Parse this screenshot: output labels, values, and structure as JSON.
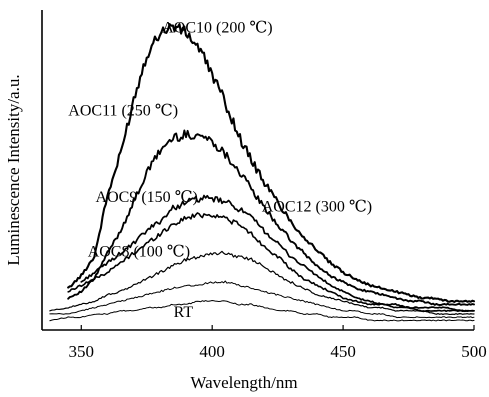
{
  "chart_data": {
    "type": "line",
    "xlabel": "Wavelength/nm",
    "ylabel": "Luminescence Intensity/a.u.",
    "xlim": [
      335,
      500
    ],
    "xticks": [
      350,
      400,
      450,
      500
    ],
    "ylim": [
      0,
      100
    ],
    "y_ticks_visible": false,
    "grid": false,
    "legend": "none",
    "series": [
      {
        "name": "AOC10 (200 ℃)",
        "x": [
          345,
          350,
          355,
          360,
          365,
          370,
          375,
          380,
          385,
          390,
          395,
          400,
          405,
          410,
          415,
          420,
          425,
          430,
          435,
          440,
          445,
          450,
          455,
          460,
          465,
          470,
          475,
          480,
          485,
          490,
          495,
          500
        ],
        "y": [
          13,
          17,
          23,
          42,
          55,
          72,
          86,
          93,
          95,
          93,
          88,
          80,
          71,
          61,
          53,
          46,
          40,
          34,
          29,
          25,
          21,
          18,
          16,
          14,
          13,
          12,
          11,
          10,
          10,
          9,
          9,
          9
        ],
        "stroke": 2.1
      },
      {
        "name": "AOC11 (250 ℃)",
        "x": [
          345,
          350,
          355,
          360,
          365,
          370,
          375,
          380,
          385,
          390,
          395,
          400,
          405,
          410,
          415,
          420,
          425,
          430,
          435,
          440,
          445,
          450,
          455,
          460,
          465,
          470,
          475,
          480,
          485,
          490,
          495,
          500
        ],
        "y": [
          10,
          12,
          16,
          24,
          31,
          40,
          49,
          56,
          60,
          61,
          61,
          59,
          55,
          50,
          44,
          38,
          33,
          28,
          24,
          20,
          17,
          15,
          13,
          12,
          11,
          10,
          9,
          9,
          8,
          8,
          8,
          8
        ],
        "stroke": 1.9
      },
      {
        "name": "AOC9 (150 ℃)",
        "x": [
          350,
          355,
          360,
          365,
          370,
          375,
          380,
          385,
          390,
          395,
          400,
          405,
          410,
          415,
          420,
          425,
          430,
          435,
          440,
          445,
          450,
          455,
          460,
          465,
          470,
          475,
          480,
          485,
          490,
          495,
          500
        ],
        "y": [
          15,
          18,
          21,
          24,
          27,
          31,
          34,
          38,
          40,
          41,
          41,
          40,
          38,
          35,
          31,
          27,
          23,
          20,
          17,
          14,
          12,
          10,
          9,
          8,
          8,
          7,
          7,
          7,
          7,
          6,
          6
        ],
        "stroke": 1.7
      },
      {
        "name": "AOC12 (300 ℃)",
        "x": [
          345,
          350,
          355,
          360,
          365,
          370,
          375,
          380,
          385,
          390,
          395,
          400,
          405,
          410,
          415,
          420,
          425,
          430,
          435,
          440,
          445,
          450,
          455,
          460,
          465,
          470,
          475,
          480,
          485,
          490,
          495,
          500
        ],
        "y": [
          12,
          14,
          16,
          18,
          21,
          24,
          27,
          30,
          33,
          35,
          36,
          36,
          35,
          33,
          30,
          26,
          23,
          19,
          16,
          14,
          12,
          10,
          9,
          8,
          8,
          7,
          7,
          6,
          6,
          6,
          6,
          6
        ],
        "stroke": 1.6
      },
      {
        "name": "AOC8 (100 ℃)",
        "x": [
          338,
          345,
          350,
          355,
          360,
          365,
          370,
          375,
          380,
          385,
          390,
          395,
          400,
          405,
          410,
          415,
          420,
          425,
          430,
          435,
          440,
          445,
          450,
          455,
          460,
          465,
          470,
          475,
          480,
          485,
          490,
          495,
          500
        ],
        "y": [
          6,
          7,
          8,
          9,
          11,
          12,
          14,
          16,
          18,
          20,
          22,
          23,
          24,
          24,
          23,
          22,
          20,
          17,
          15,
          13,
          11,
          10,
          9,
          8,
          7,
          7,
          6,
          6,
          6,
          5,
          5,
          5,
          5
        ],
        "stroke": 1.2
      },
      {
        "name": "",
        "x": [
          338,
          345,
          350,
          355,
          360,
          365,
          370,
          375,
          380,
          385,
          390,
          395,
          400,
          405,
          410,
          415,
          420,
          425,
          430,
          435,
          440,
          445,
          450,
          455,
          460,
          465,
          470,
          475,
          480,
          485,
          490,
          495,
          500
        ],
        "y": [
          5,
          5,
          6,
          7,
          8,
          9,
          10,
          11,
          12,
          13,
          14,
          14,
          15,
          15,
          14,
          13,
          12,
          11,
          10,
          9,
          8,
          7,
          6,
          6,
          5,
          5,
          4,
          4,
          4,
          4,
          4,
          4,
          4
        ],
        "stroke": 1.0
      },
      {
        "name": "RT",
        "x": [
          338,
          345,
          350,
          355,
          360,
          365,
          370,
          375,
          380,
          385,
          390,
          395,
          400,
          405,
          410,
          415,
          420,
          425,
          430,
          435,
          440,
          445,
          450,
          455,
          460,
          465,
          470,
          475,
          480,
          485,
          490,
          495,
          500
        ],
        "y": [
          3,
          4,
          4,
          5,
          5,
          6,
          6,
          7,
          7,
          8,
          8,
          9,
          9,
          9,
          8,
          8,
          7,
          6,
          6,
          5,
          5,
          4,
          4,
          4,
          3,
          3,
          3,
          3,
          3,
          3,
          3,
          3,
          3
        ],
        "stroke": 1.0
      }
    ],
    "annotations": [
      {
        "text": "AOC10 (200 ℃)",
        "x": 402,
        "y": 93
      },
      {
        "text": "AOC11 (250 ℃)",
        "x": 366,
        "y": 67
      },
      {
        "text": "AOC9 (150 ℃)",
        "x": 375,
        "y": 40
      },
      {
        "text": "AOC12 (300 ℃)",
        "x": 440,
        "y": 37
      },
      {
        "text": "AOC8 (100 ℃)",
        "x": 372,
        "y": 23
      },
      {
        "text": "RT",
        "x": 389,
        "y": 4
      }
    ]
  }
}
